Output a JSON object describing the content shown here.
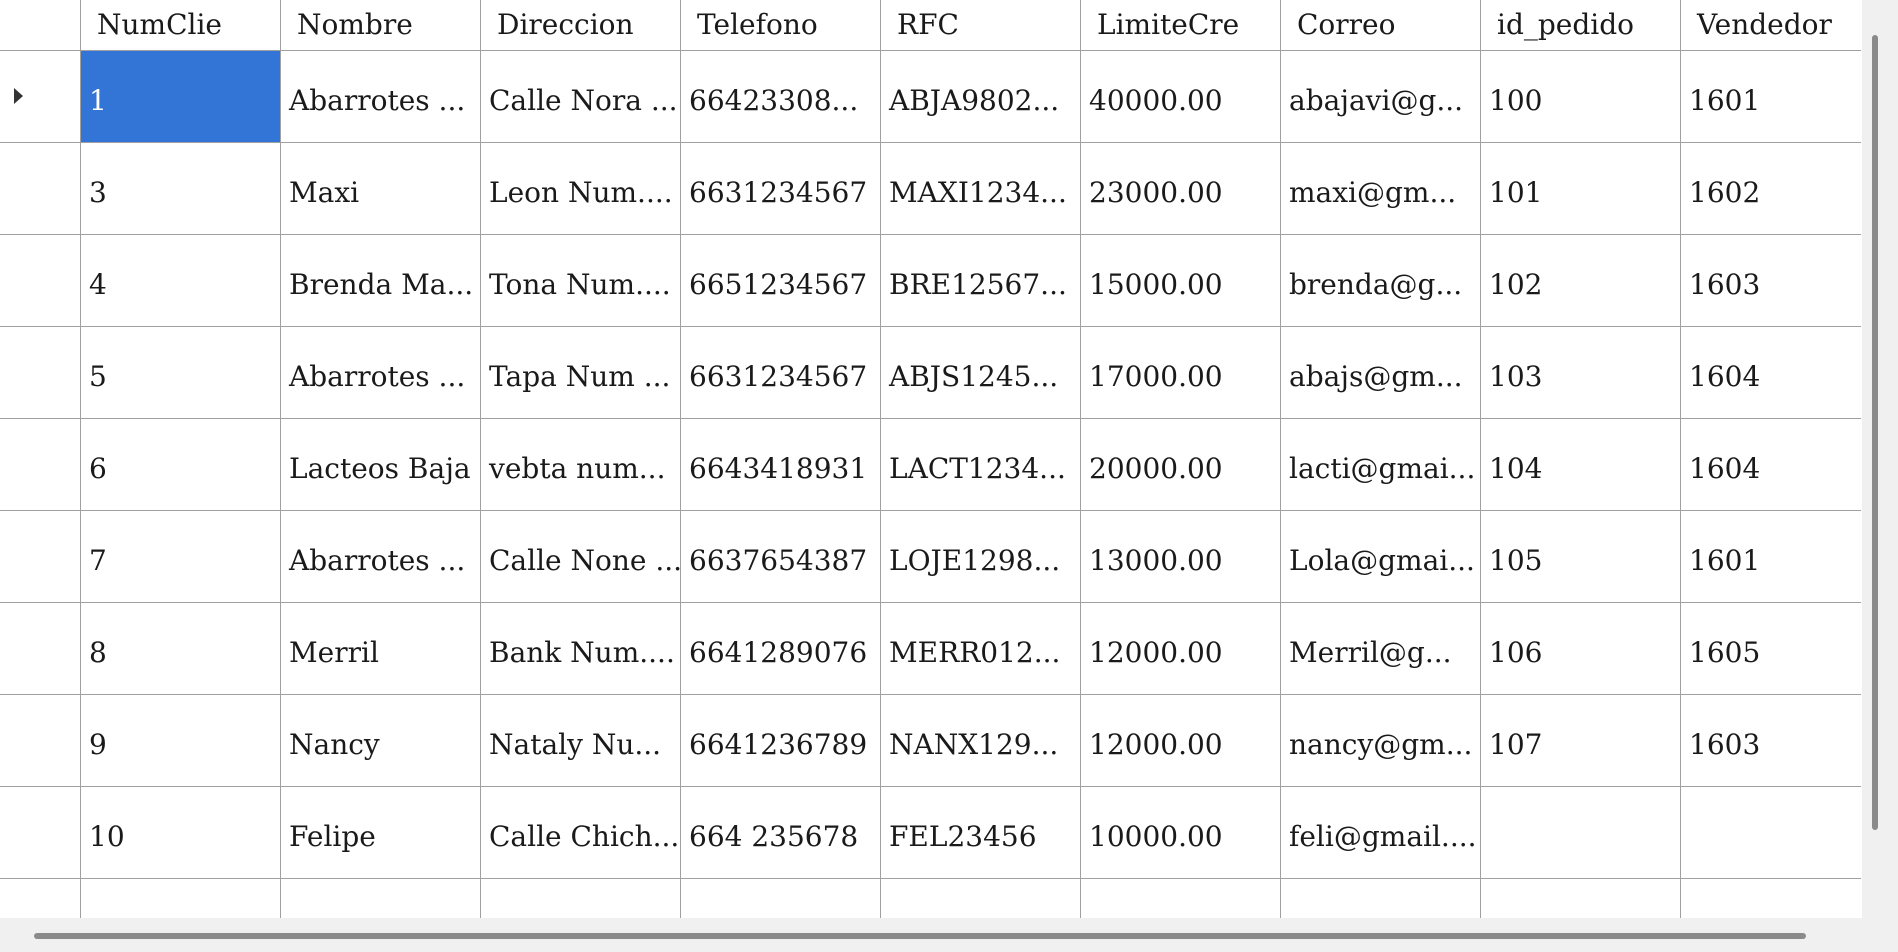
{
  "columns": [
    "NumClie",
    "Nombre",
    "Direccion",
    "Telefono",
    "RFC",
    "LimiteCre",
    "Correo",
    "id_pedido",
    "Vendedor"
  ],
  "rows": [
    [
      "1",
      "Abarrotes ...",
      "Calle Nora ...",
      "66423308...",
      "ABJA9802...",
      "40000.00",
      "abajavi@g...",
      "100",
      "1601"
    ],
    [
      "3",
      "Maxi",
      "Leon Num....",
      "6631234567",
      "MAXI1234...",
      "23000.00",
      "maxi@gm...",
      "101",
      "1602"
    ],
    [
      "4",
      "Brenda Ma...",
      "Tona Num....",
      "6651234567",
      "BRE12567...",
      "15000.00",
      "brenda@g...",
      "102",
      "1603"
    ],
    [
      "5",
      "Abarrotes ...",
      "Tapa Num ...",
      "6631234567",
      "ABJS1245...",
      "17000.00",
      "abajs@gm...",
      "103",
      "1604"
    ],
    [
      "6",
      "Lacteos Baja",
      "vebta num...",
      "6643418931",
      "LACT1234...",
      "20000.00",
      "lacti@gmai...",
      "104",
      "1604"
    ],
    [
      "7",
      "Abarrotes ...",
      "Calle None ...",
      "6637654387",
      "LOJE1298...",
      "13000.00",
      "Lola@gmai...",
      "105",
      "1601"
    ],
    [
      "8",
      "Merril",
      "Bank Num....",
      "6641289076",
      "MERR012...",
      "12000.00",
      "Merril@g...",
      "106",
      "1605"
    ],
    [
      "9",
      "Nancy",
      "Nataly Nu...",
      "6641236789",
      "NANX129...",
      "12000.00",
      "nancy@gm...",
      "107",
      "1603"
    ],
    [
      "10",
      "Felipe",
      "Calle Chich...",
      "664 235678",
      "FEL23456",
      "10000.00",
      "feli@gmail....",
      "",
      ""
    ],
    [
      "",
      "",
      "",
      "",
      "",
      "",
      "",
      "",
      ""
    ]
  ],
  "selection": {
    "row": 0,
    "column": 0
  },
  "colors": {
    "selection": "#3375d6",
    "grid_line": "#a0a0a0",
    "background": "#f0f0f0"
  },
  "icons": {
    "current_row": "row-pointer-arrow-icon"
  }
}
